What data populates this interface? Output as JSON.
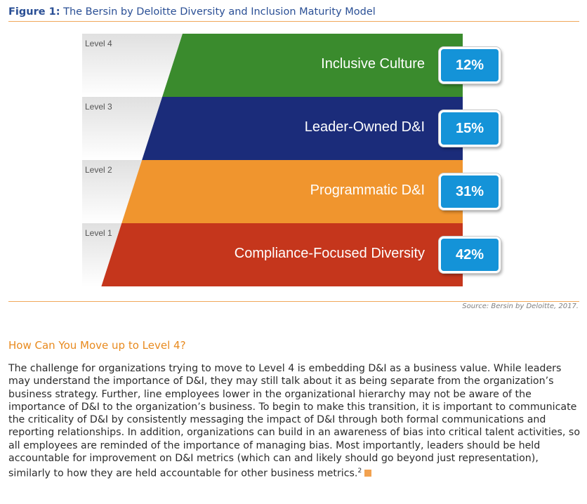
{
  "figure": {
    "label": "Figure 1:",
    "title": "The Bersin by Deloitte Diversity and Inclusion Maturity Model",
    "source": "Source: Bersin by Deloitte, 2017."
  },
  "levels": [
    {
      "level": "Level 4",
      "name": "Inclusive Culture",
      "percent": "12%",
      "color": "#3a8b2d"
    },
    {
      "level": "Level 3",
      "name": "Leader-Owned D&I",
      "percent": "15%",
      "color": "#1b2c7a"
    },
    {
      "level": "Level 2",
      "name": "Programmatic D&I",
      "percent": "31%",
      "color": "#f0952e"
    },
    {
      "level": "Level 1",
      "name": "Compliance-Focused Diversity",
      "percent": "42%",
      "color": "#c5361c"
    }
  ],
  "colors": {
    "badge": "#1493d8",
    "accent": "#e88a1e",
    "title": "#2a4f95"
  },
  "section": {
    "heading": "How Can You Move up to Level 4?",
    "paragraph": "The challenge for organizations trying to move to Level 4 is embedding D&I as a business value. While leaders may understand the importance of D&I, they may still talk about it as being separate from the organization’s business strategy. Further, line employees lower in the organizational hierarchy may not be aware of the importance of D&I to the organization’s business. To begin to make this transition, it is important to communicate the criticality of D&I by consistently messaging the impact of D&I through both formal communications and reporting relationships. In addition, organizations can build in an awareness of bias into critical talent activities, so all employees are reminded of the importance of managing bias. Most importantly, leaders should be held accountable for improvement on D&I metrics (which can and likely should go beyond just representation), similarly to how they are held accountable for other business metrics.",
    "footnote": "2"
  }
}
